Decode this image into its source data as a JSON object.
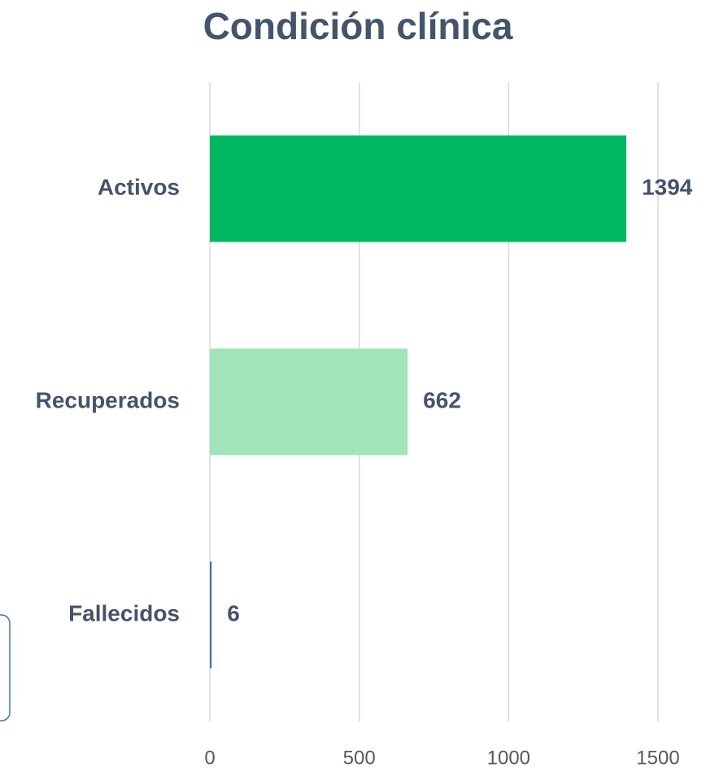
{
  "chart_data": {
    "type": "bar",
    "orientation": "horizontal",
    "title": "Condición clínica",
    "categories": [
      "Activos",
      "Recuperados",
      "Fallecidos"
    ],
    "values": [
      1394,
      662,
      6
    ],
    "colors": [
      "#00b862",
      "#a0e4b8",
      "#4472c4"
    ],
    "xlim": [
      0,
      1500
    ],
    "xticks": [
      0,
      500,
      1000,
      1500
    ],
    "grid": true
  }
}
